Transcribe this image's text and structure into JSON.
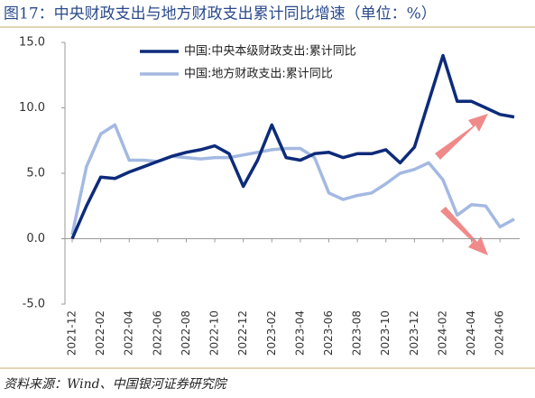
{
  "chart_data": {
    "type": "line",
    "title": "图17：中央财政支出与地方财政支出累计同比增速（单位：%）",
    "source": "资料来源：Wind、中国银河证券研究院",
    "categories": [
      "2021-12",
      null,
      "2022-02",
      null,
      "2022-04",
      null,
      "2022-06",
      null,
      "2022-08",
      null,
      "2022-10",
      null,
      "2022-12",
      null,
      "2023-02",
      null,
      "2023-04",
      null,
      "2023-06",
      null,
      "2023-08",
      null,
      "2023-10",
      null,
      "2023-12",
      null,
      "2024-02",
      null,
      "2024-04",
      null,
      "2024-06",
      null
    ],
    "series": [
      {
        "name": "中国:中央本级财政支出:累计同比",
        "color": "#0d2b7a",
        "values": [
          0,
          2.5,
          4.7,
          4.6,
          5.1,
          5.5,
          5.9,
          6.3,
          6.6,
          6.8,
          7.1,
          6.5,
          4.0,
          6.0,
          8.7,
          6.2,
          6.0,
          6.5,
          6.6,
          6.2,
          6.5,
          6.5,
          6.8,
          5.8,
          7.0,
          10.5,
          14.0,
          10.5,
          10.5,
          10.0,
          9.5,
          9.3
        ]
      },
      {
        "name": "中国:地方财政支出:累计同比",
        "color": "#a3b9e2",
        "values": [
          0.3,
          5.5,
          8.0,
          8.7,
          6.0,
          6.0,
          5.9,
          6.3,
          6.2,
          6.1,
          6.2,
          6.2,
          6.4,
          6.6,
          6.8,
          6.9,
          6.9,
          6.2,
          3.5,
          3.0,
          3.3,
          3.5,
          4.2,
          5.0,
          5.3,
          5.8,
          4.5,
          1.8,
          2.6,
          2.5,
          0.9,
          1.5
        ]
      }
    ],
    "ylim": [
      -5,
      15
    ],
    "yticks": [
      {
        "value": -5,
        "label": "-5.0"
      },
      {
        "value": 0,
        "label": "0.0"
      },
      {
        "value": 5,
        "label": "5.0"
      },
      {
        "value": 10,
        "label": "10.0"
      },
      {
        "value": 15,
        "label": "15.0"
      }
    ]
  }
}
